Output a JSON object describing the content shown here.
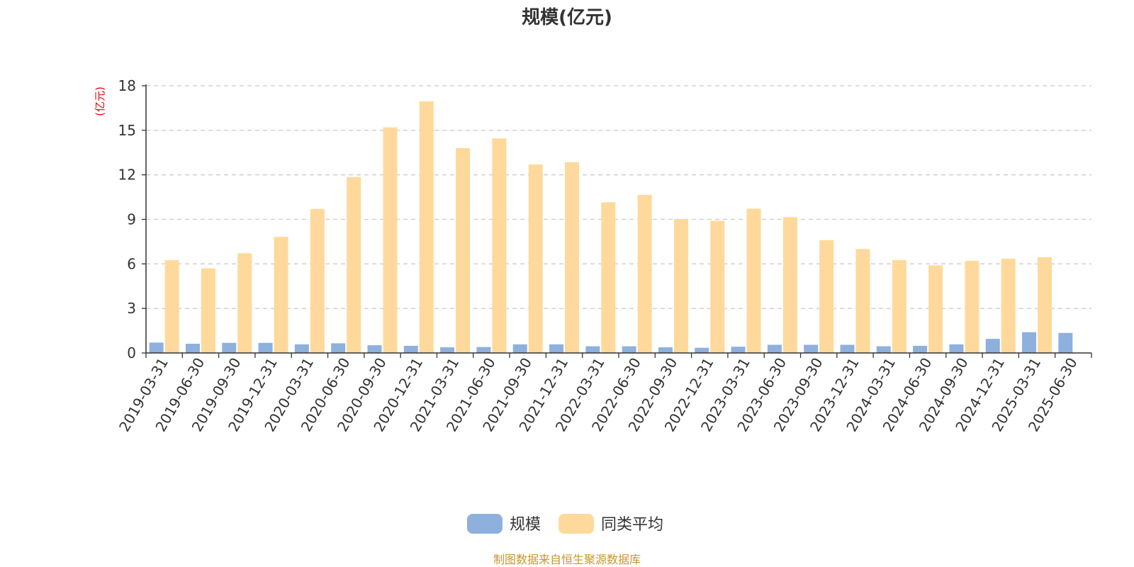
{
  "chart_data": {
    "type": "bar",
    "title": "规模(亿元)",
    "unit_label": "(亿元)",
    "categories": [
      "2019-03-31",
      "2019-06-30",
      "2019-09-30",
      "2019-12-31",
      "2020-03-31",
      "2020-06-30",
      "2020-09-30",
      "2020-12-31",
      "2021-03-31",
      "2021-06-30",
      "2021-09-30",
      "2021-12-31",
      "2022-03-31",
      "2022-06-30",
      "2022-09-30",
      "2022-12-31",
      "2023-03-31",
      "2023-06-30",
      "2023-09-30",
      "2023-12-31",
      "2024-03-31",
      "2024-06-30",
      "2024-09-30",
      "2024-12-31",
      "2025-03-31",
      "2025-06-30"
    ],
    "series": [
      {
        "name": "规模",
        "color": "#8eb0dd",
        "values": [
          0.7,
          0.62,
          0.68,
          0.68,
          0.58,
          0.65,
          0.52,
          0.48,
          0.38,
          0.4,
          0.58,
          0.58,
          0.45,
          0.45,
          0.38,
          0.35,
          0.42,
          0.55,
          0.55,
          0.55,
          0.45,
          0.48,
          0.58,
          0.95,
          1.4,
          1.35
        ]
      },
      {
        "name": "同类平均",
        "color": "#ffd99b",
        "values": [
          6.25,
          5.7,
          6.72,
          7.82,
          9.7,
          11.85,
          15.2,
          16.95,
          13.8,
          14.45,
          12.7,
          12.85,
          10.15,
          10.65,
          9.02,
          8.9,
          9.72,
          9.15,
          7.6,
          7.0,
          6.25,
          5.9,
          6.2,
          6.35,
          6.45,
          null
        ]
      }
    ],
    "ylim": [
      0,
      18
    ],
    "yticks": [
      0,
      3,
      6,
      9,
      12,
      15,
      18
    ],
    "grid": true,
    "legend_position": "bottom-center"
  },
  "legend": {
    "items": [
      "规模",
      "同类平均"
    ]
  },
  "footer": {
    "source": "制图数据来自恒生聚源数据库"
  }
}
